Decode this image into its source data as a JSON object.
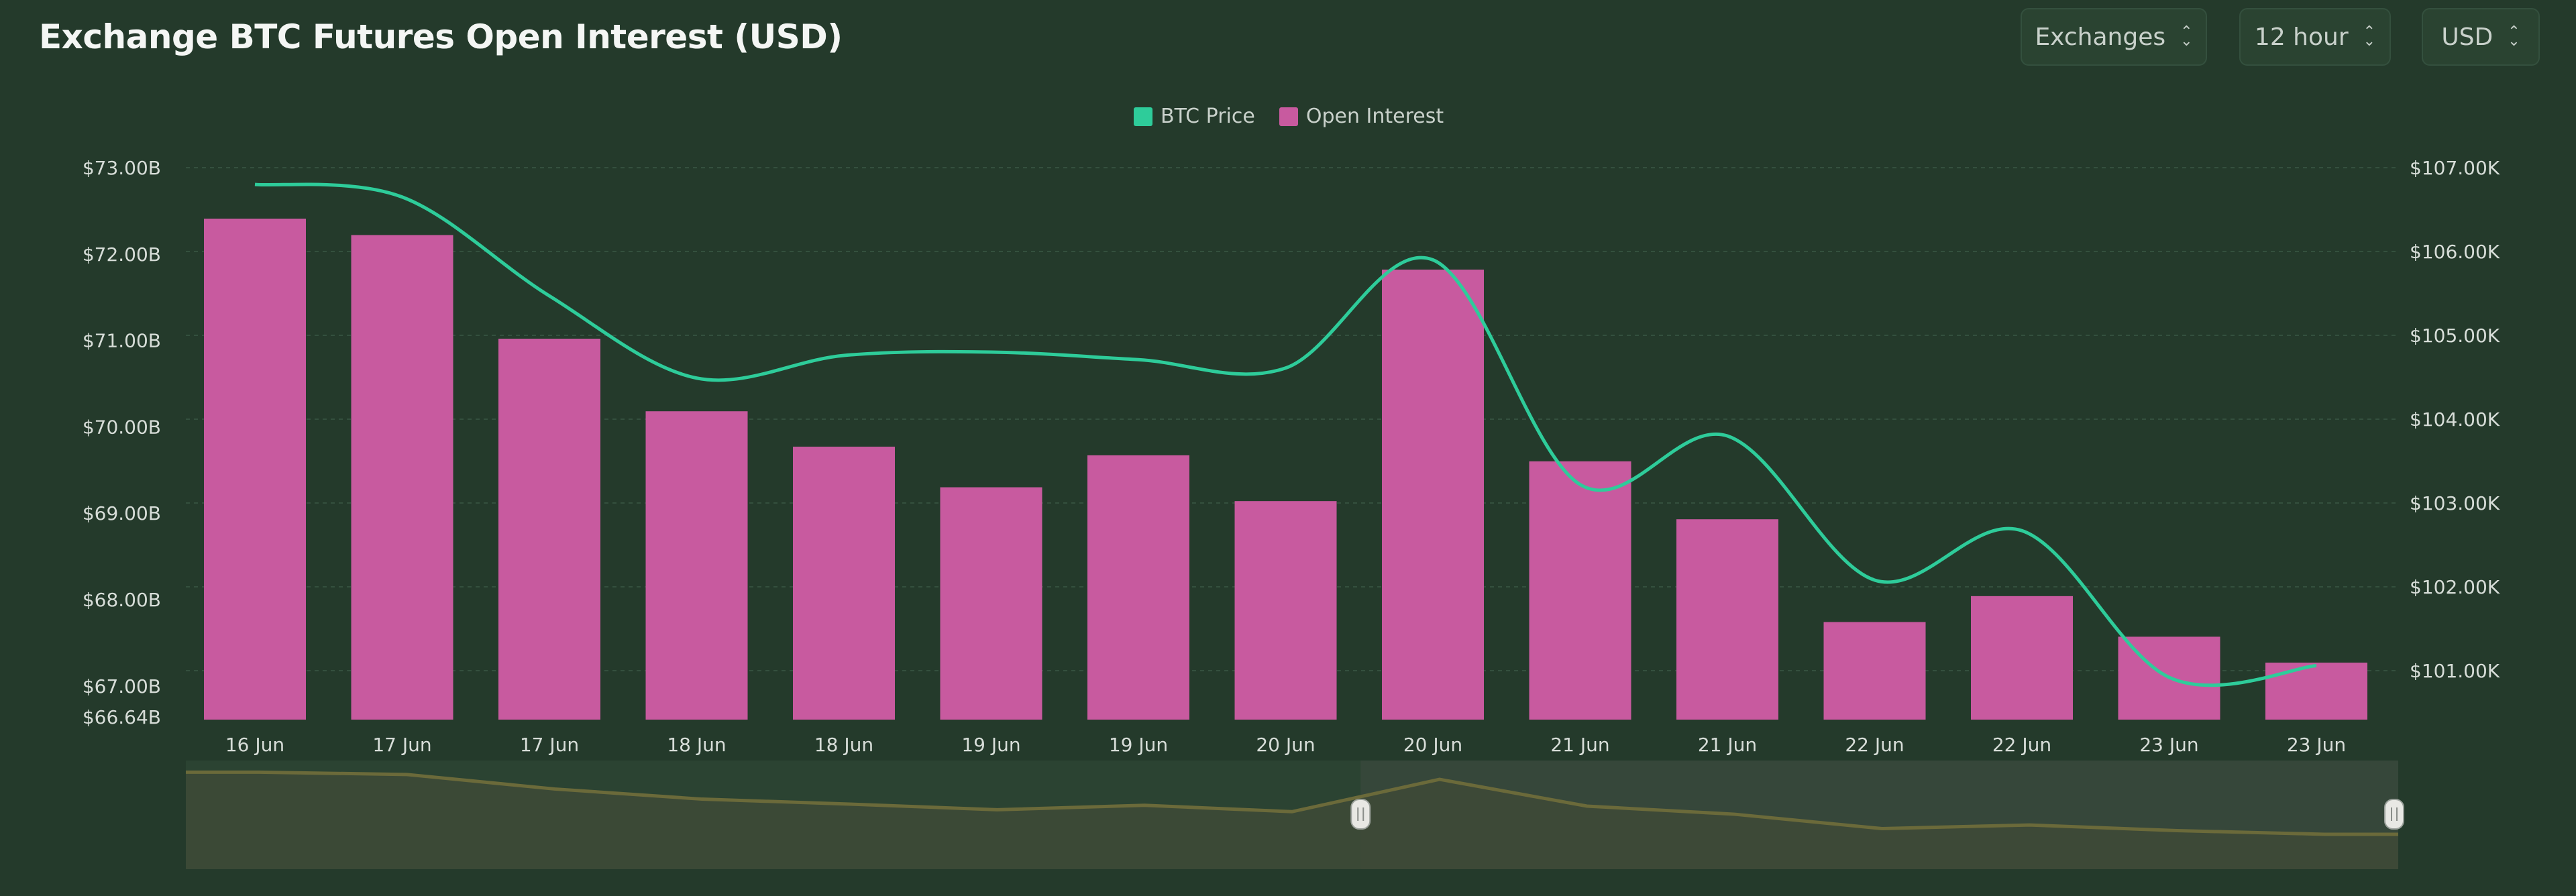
{
  "header": {
    "title": "Exchange BTC Futures Open Interest (USD)",
    "selectors": [
      {
        "label": "Exchanges",
        "icon": "chevron-up-down-icon"
      },
      {
        "label": "12 hour",
        "icon": "chevron-up-down-icon"
      },
      {
        "label": "USD",
        "icon": "chevron-up-down-icon"
      }
    ]
  },
  "legend": [
    {
      "label": "BTC Price",
      "color": "#2ecc9a"
    },
    {
      "label": "Open Interest",
      "color": "#c85a9f"
    }
  ],
  "colors": {
    "background": "#243a2b",
    "bar": "#c85a9f",
    "line": "#2ecc9a",
    "grid": "#34503e",
    "navigator_fill": "#3a4a38",
    "navigator_selected": "#434c33",
    "navigator_line": "#6b6a3a"
  },
  "chart_data": {
    "type": "bar",
    "title": "Exchange BTC Futures Open Interest (USD)",
    "categories": [
      "16 Jun",
      "17 Jun",
      "17 Jun",
      "18 Jun",
      "18 Jun",
      "19 Jun",
      "19 Jun",
      "20 Jun",
      "20 Jun",
      "21 Jun",
      "21 Jun",
      "22 Jun",
      "22 Jun",
      "23 Jun",
      "23 Jun"
    ],
    "series": [
      {
        "name": "Open Interest",
        "type": "bar",
        "axis": "left",
        "values": [
          72.41,
          72.22,
          71.02,
          70.18,
          69.77,
          69.3,
          69.67,
          69.14,
          71.82,
          69.6,
          68.93,
          67.74,
          68.04,
          67.57,
          67.27
        ]
      },
      {
        "name": "BTC Price",
        "type": "line",
        "axis": "right",
        "values": [
          106.8,
          106.65,
          105.47,
          104.49,
          104.76,
          104.8,
          104.71,
          104.61,
          105.9,
          103.22,
          103.8,
          102.08,
          102.67,
          100.92,
          101.06
        ]
      }
    ],
    "left_axis": {
      "ticks": [
        "$73.00B",
        "$72.00B",
        "$71.00B",
        "$70.00B",
        "$69.00B",
        "$68.00B",
        "$67.00B",
        "$66.64B"
      ],
      "min": 66.64,
      "max": 73.0,
      "unit": "B USD"
    },
    "right_axis": {
      "ticks": [
        "$107.00K",
        "$106.00K",
        "$105.00K",
        "$104.00K",
        "$103.00K",
        "$102.00K",
        "$101.00K"
      ],
      "min": 101.0,
      "max": 107.0,
      "unit": "K USD"
    },
    "legend_position": "top-center",
    "grid": true,
    "navigator": {
      "visible": true,
      "selection_start_index": 8,
      "selection_end_index": 14
    }
  }
}
